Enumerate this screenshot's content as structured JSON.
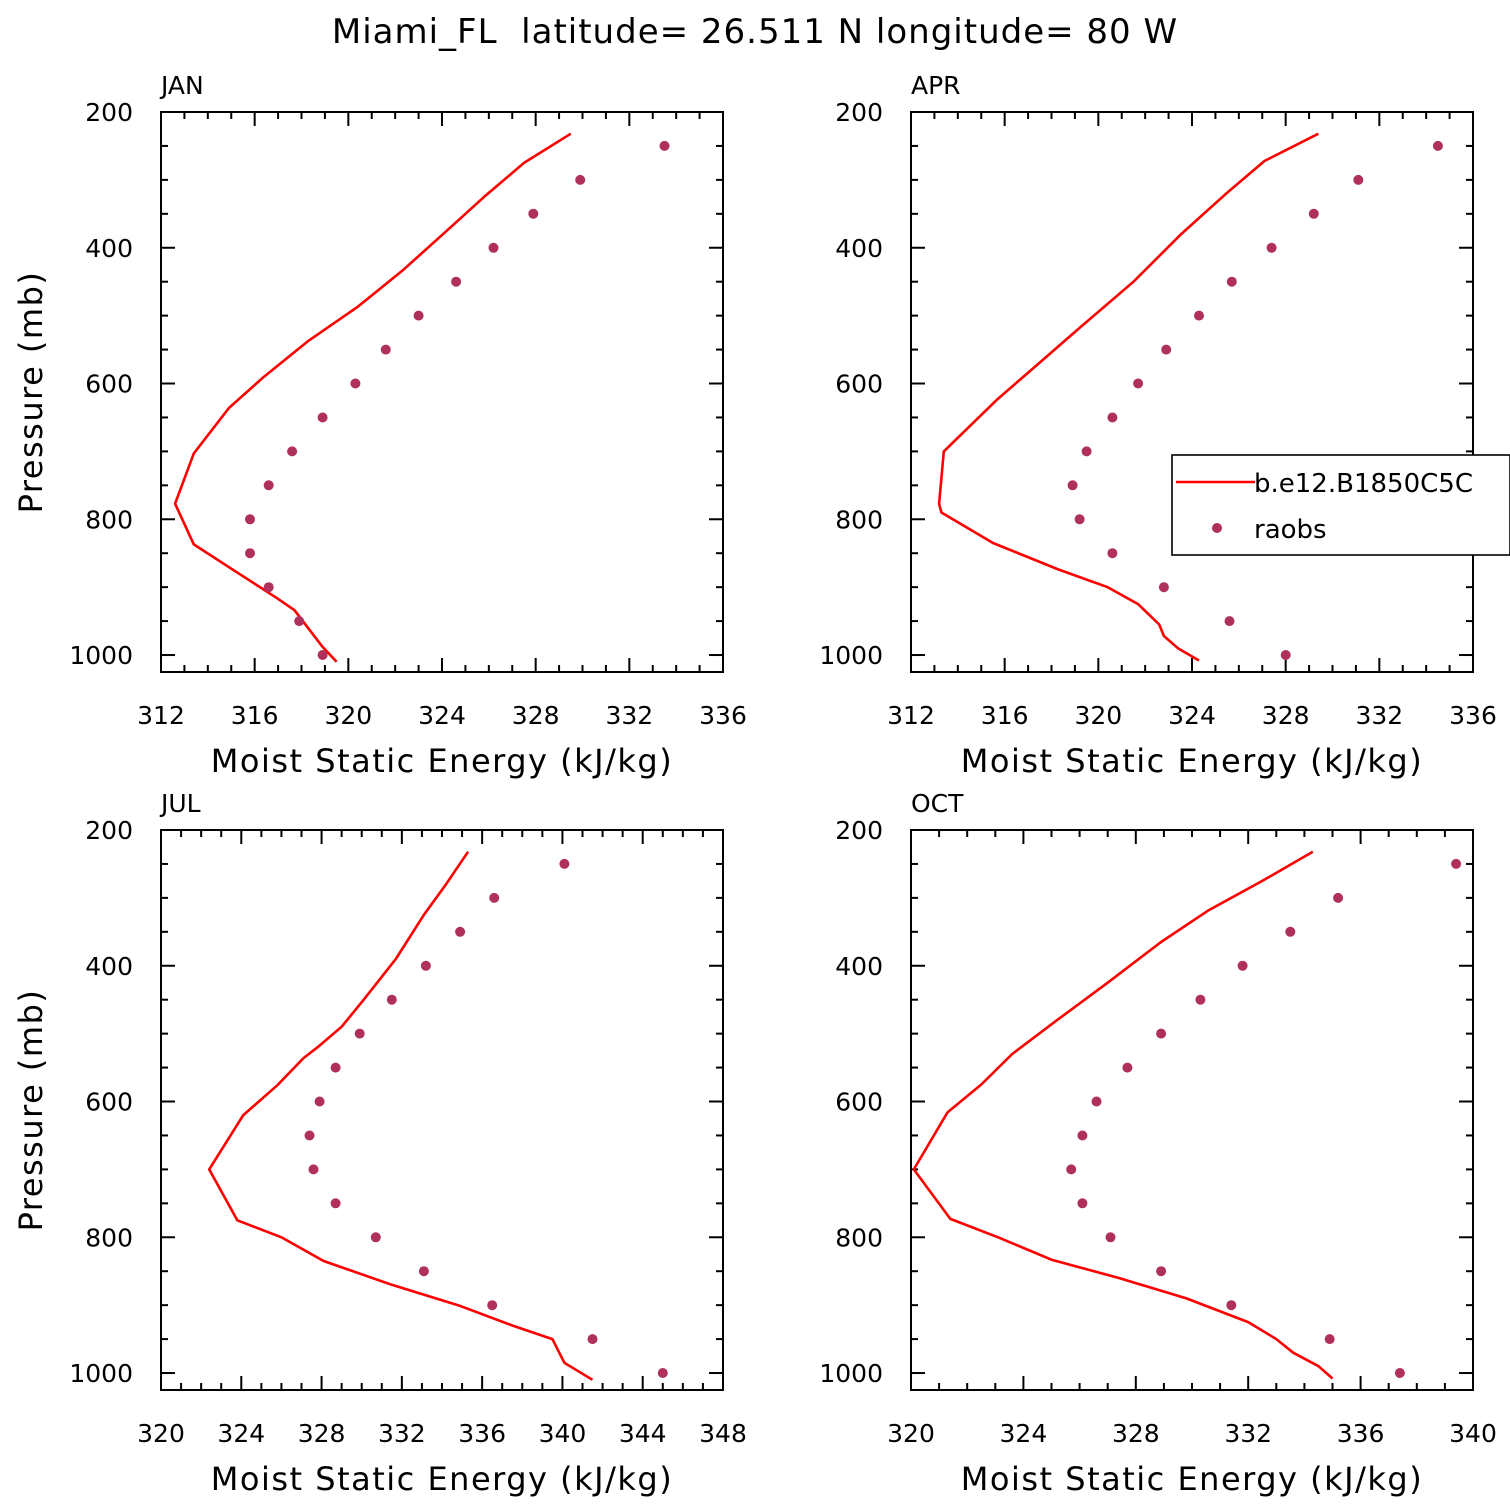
{
  "title": "Miami_FL  latitude= 26.511 N longitude= 80 W",
  "legend": {
    "model_label": "b.e12.B1850C5C",
    "raobs_label": "raobs",
    "placement": "right-middle of APR panel"
  },
  "colors": {
    "model_line": "#ff0000",
    "raobs_marker": "#b0305c",
    "axes": "#000000"
  },
  "chart_data": [
    {
      "type": "line",
      "title": "JAN",
      "xlabel": "Moist Static Energy (kJ/kg)",
      "ylabel": "Pressure (mb)",
      "xlim": [
        312,
        336
      ],
      "ylim": [
        1025,
        200
      ],
      "xticks": [
        312,
        316,
        320,
        324,
        328,
        332,
        336
      ],
      "yticks": [
        200,
        400,
        600,
        800,
        1000
      ],
      "series": [
        {
          "name": "b.e12.B1850C5C",
          "kind": "line",
          "x": [
            329.5,
            327.5,
            325.8,
            324.2,
            322.3,
            320.4,
            318.3,
            316.4,
            314.9,
            313.4,
            312.6,
            313.4,
            315.1,
            316.9,
            317.7,
            318.5,
            318.9,
            319.5
          ],
          "y": [
            232,
            275,
            325,
            375,
            434,
            487,
            537,
            590,
            636,
            703,
            777,
            837,
            875,
            915,
            934,
            970,
            988,
            1010
          ]
        },
        {
          "name": "raobs",
          "kind": "scatter",
          "x": [
            333.5,
            329.9,
            327.9,
            326.2,
            324.6,
            323.0,
            321.6,
            320.3,
            318.9,
            317.6,
            316.6,
            315.8,
            315.8,
            316.6,
            317.9,
            318.9
          ],
          "y": [
            250,
            300,
            350,
            400,
            450,
            500,
            550,
            600,
            650,
            700,
            750,
            800,
            850,
            900,
            950,
            1000
          ]
        }
      ]
    },
    {
      "type": "line",
      "title": "APR",
      "xlabel": "Moist Static Energy (kJ/kg)",
      "ylabel": "",
      "xlim": [
        312,
        336
      ],
      "ylim": [
        1025,
        200
      ],
      "xticks": [
        312,
        316,
        320,
        324,
        328,
        332,
        336
      ],
      "yticks": [
        200,
        400,
        600,
        800,
        1000
      ],
      "series": [
        {
          "name": "b.e12.B1850C5C",
          "kind": "line",
          "x": [
            329.4,
            327.1,
            325.4,
            323.5,
            321.5,
            319.2,
            317.2,
            315.7,
            313.4,
            313.2,
            313.3,
            315.5,
            318.3,
            320.4,
            321.7,
            322.6,
            322.8,
            323.4,
            324.3
          ],
          "y": [
            232,
            272,
            322,
            381,
            450,
            518,
            578,
            623,
            700,
            777,
            790,
            835,
            874,
            900,
            925,
            955,
            972,
            990,
            1008
          ]
        },
        {
          "name": "raobs",
          "kind": "scatter",
          "x": [
            334.5,
            331.1,
            329.2,
            327.4,
            325.7,
            324.3,
            322.9,
            321.7,
            320.6,
            319.5,
            318.9,
            319.2,
            320.6,
            322.8,
            325.6,
            328.0
          ],
          "y": [
            250,
            300,
            350,
            400,
            450,
            500,
            550,
            600,
            650,
            700,
            750,
            800,
            850,
            900,
            950,
            1000
          ]
        }
      ]
    },
    {
      "type": "line",
      "title": "JUL",
      "xlabel": "Moist Static Energy (kJ/kg)",
      "ylabel": "Pressure (mb)",
      "xlim": [
        320,
        348
      ],
      "ylim": [
        1025,
        200
      ],
      "xticks": [
        320,
        324,
        328,
        332,
        336,
        340,
        344,
        348
      ],
      "yticks": [
        200,
        400,
        600,
        800,
        1000
      ],
      "series": [
        {
          "name": "b.e12.B1850C5C",
          "kind": "line",
          "x": [
            335.3,
            334.2,
            333.1,
            331.7,
            330.1,
            329.0,
            327.8,
            327.1,
            325.8,
            324.1,
            322.4,
            323.8,
            326.0,
            328.1,
            331.5,
            334.8,
            337.5,
            339.5,
            340.1,
            341.5
          ],
          "y": [
            232,
            280,
            325,
            390,
            450,
            490,
            520,
            536,
            576,
            620,
            700,
            775,
            800,
            835,
            870,
            900,
            930,
            950,
            985,
            1010
          ]
        },
        {
          "name": "raobs",
          "kind": "scatter",
          "x": [
            340.1,
            336.6,
            334.9,
            333.2,
            331.5,
            329.9,
            328.7,
            327.9,
            327.4,
            327.6,
            328.7,
            330.7,
            333.1,
            336.5,
            341.5,
            345.0
          ],
          "y": [
            250,
            300,
            350,
            400,
            450,
            500,
            550,
            600,
            650,
            700,
            750,
            800,
            850,
            900,
            950,
            1000
          ]
        }
      ]
    },
    {
      "type": "line",
      "title": "OCT",
      "xlabel": "Moist Static Energy (kJ/kg)",
      "ylabel": "",
      "xlim": [
        320,
        340
      ],
      "ylim": [
        1025,
        200
      ],
      "xticks": [
        320,
        324,
        328,
        332,
        336,
        340
      ],
      "yticks": [
        200,
        400,
        600,
        800,
        1000
      ],
      "series": [
        {
          "name": "b.e12.B1850C5C",
          "kind": "line",
          "x": [
            334.3,
            332.5,
            330.6,
            328.9,
            327.0,
            325.2,
            323.6,
            322.5,
            321.3,
            320.1,
            321.4,
            323.1,
            325.0,
            327.4,
            329.8,
            332.0,
            333.0,
            333.6,
            334.5,
            335.0
          ],
          "y": [
            232,
            275,
            318,
            365,
            425,
            480,
            530,
            575,
            616,
            700,
            773,
            800,
            833,
            860,
            890,
            925,
            950,
            970,
            990,
            1008
          ]
        },
        {
          "name": "raobs",
          "kind": "scatter",
          "x": [
            339.4,
            335.2,
            333.5,
            331.8,
            330.3,
            328.9,
            327.7,
            326.6,
            326.1,
            325.7,
            326.1,
            327.1,
            328.9,
            331.4,
            334.9,
            337.4
          ],
          "y": [
            250,
            300,
            350,
            400,
            450,
            500,
            550,
            600,
            650,
            700,
            750,
            800,
            850,
            900,
            950,
            1000
          ]
        }
      ]
    }
  ]
}
